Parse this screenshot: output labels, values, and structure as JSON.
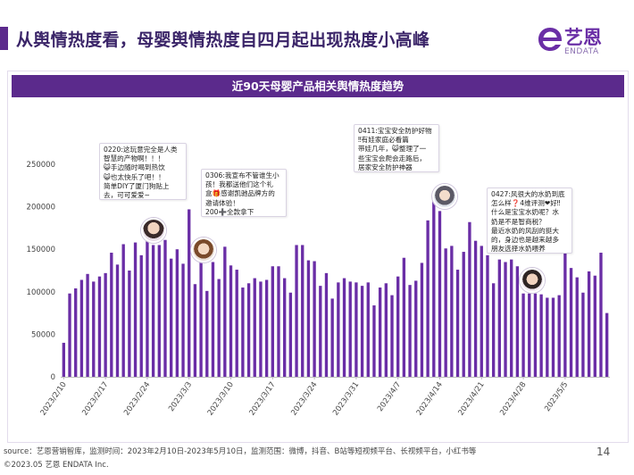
{
  "page": {
    "title": "从舆情热度看，母婴舆情热度自四月起出现热度小高峰",
    "page_number": "14"
  },
  "logo": {
    "name_cn": "艺恩",
    "name_en": "ENDATA",
    "color": "#6a2ea6"
  },
  "panel": {
    "header": "近90天母婴产品相关舆情热度趋势"
  },
  "footer": {
    "source": "source：艺恩营销智库，监测时间：2023年2月10日-2023年5月10日，监测范围：微博，抖音、B站等短视频平台、长视频平台，小红书等",
    "copyright": "©2023.05 艺恩 ENDATA Inc."
  },
  "callouts": [
    {
      "text": "0220:这玩意完全是人类\n智慧的产物啊！！！\n😺手边随时喝到热饮\n😺也太快乐了吧！！\n简单DIY了厦门狗贴上\n去，可可爱爱~"
    },
    {
      "text": "0306:我宣布不管谁生小\n孩！我都送他们这个礼\n盒🎁感谢凯驰品牌方的\n邀请体验！\n200➕全款拿下"
    },
    {
      "text": "0411:宝宝安全防护好物\n‼有娃家庭必看篇\n带娃几年，😺整理了一\n些宝宝会爬会走路后，\n居家安全防护神器"
    },
    {
      "text": "0427:风很大的水奶到底\n怎么样❓4维评测❤好‼\n什么是宝宝水奶呢？水\n奶是不是智商税？\n最近水奶的风刮的挺大\n的，身边也是越来越多\n朋友选择水奶喂养"
    }
  ],
  "chart_data": {
    "type": "bar",
    "color": "#6a2ea6",
    "ylim": [
      0,
      250000
    ],
    "yticks": [
      0,
      50000,
      100000,
      150000,
      200000,
      250000
    ],
    "ytick_labels": [
      "0",
      "50000",
      "100000",
      "150000",
      "200000",
      "250000"
    ],
    "xtick_labels": [
      "2023/2/10",
      "2023/2/17",
      "2023/2/24",
      "2023/3/3",
      "2023/3/10",
      "2023/3/17",
      "2023/3/24",
      "2023/3/31",
      "2023/4/7",
      "2023/4/14",
      "2023/4/21",
      "2023/4/28",
      "2023/5/5"
    ],
    "start_date": "2023/2/10",
    "values": [
      40000,
      98000,
      104000,
      114000,
      121000,
      112000,
      118000,
      122000,
      146000,
      132000,
      156000,
      125000,
      158000,
      143000,
      160000,
      155000,
      155000,
      161000,
      139000,
      150000,
      133000,
      197000,
      109000,
      143000,
      101000,
      135000,
      115000,
      153000,
      131000,
      126000,
      105000,
      110000,
      116000,
      112000,
      114000,
      130000,
      130000,
      116000,
      99000,
      155000,
      155000,
      137000,
      136000,
      107000,
      122000,
      92000,
      111000,
      116000,
      112000,
      111000,
      107000,
      111000,
      84000,
      105000,
      110000,
      96000,
      118000,
      140000,
      108000,
      113000,
      134000,
      184000,
      212000,
      195000,
      151000,
      154000,
      126000,
      147000,
      182000,
      160000,
      154000,
      143000,
      110000,
      138000,
      135000,
      138000,
      130000,
      98000,
      98000,
      98000,
      97000,
      93000,
      93000,
      96000,
      147000,
      128000,
      117000,
      99000,
      124000,
      119000,
      146000,
      75000
    ]
  }
}
